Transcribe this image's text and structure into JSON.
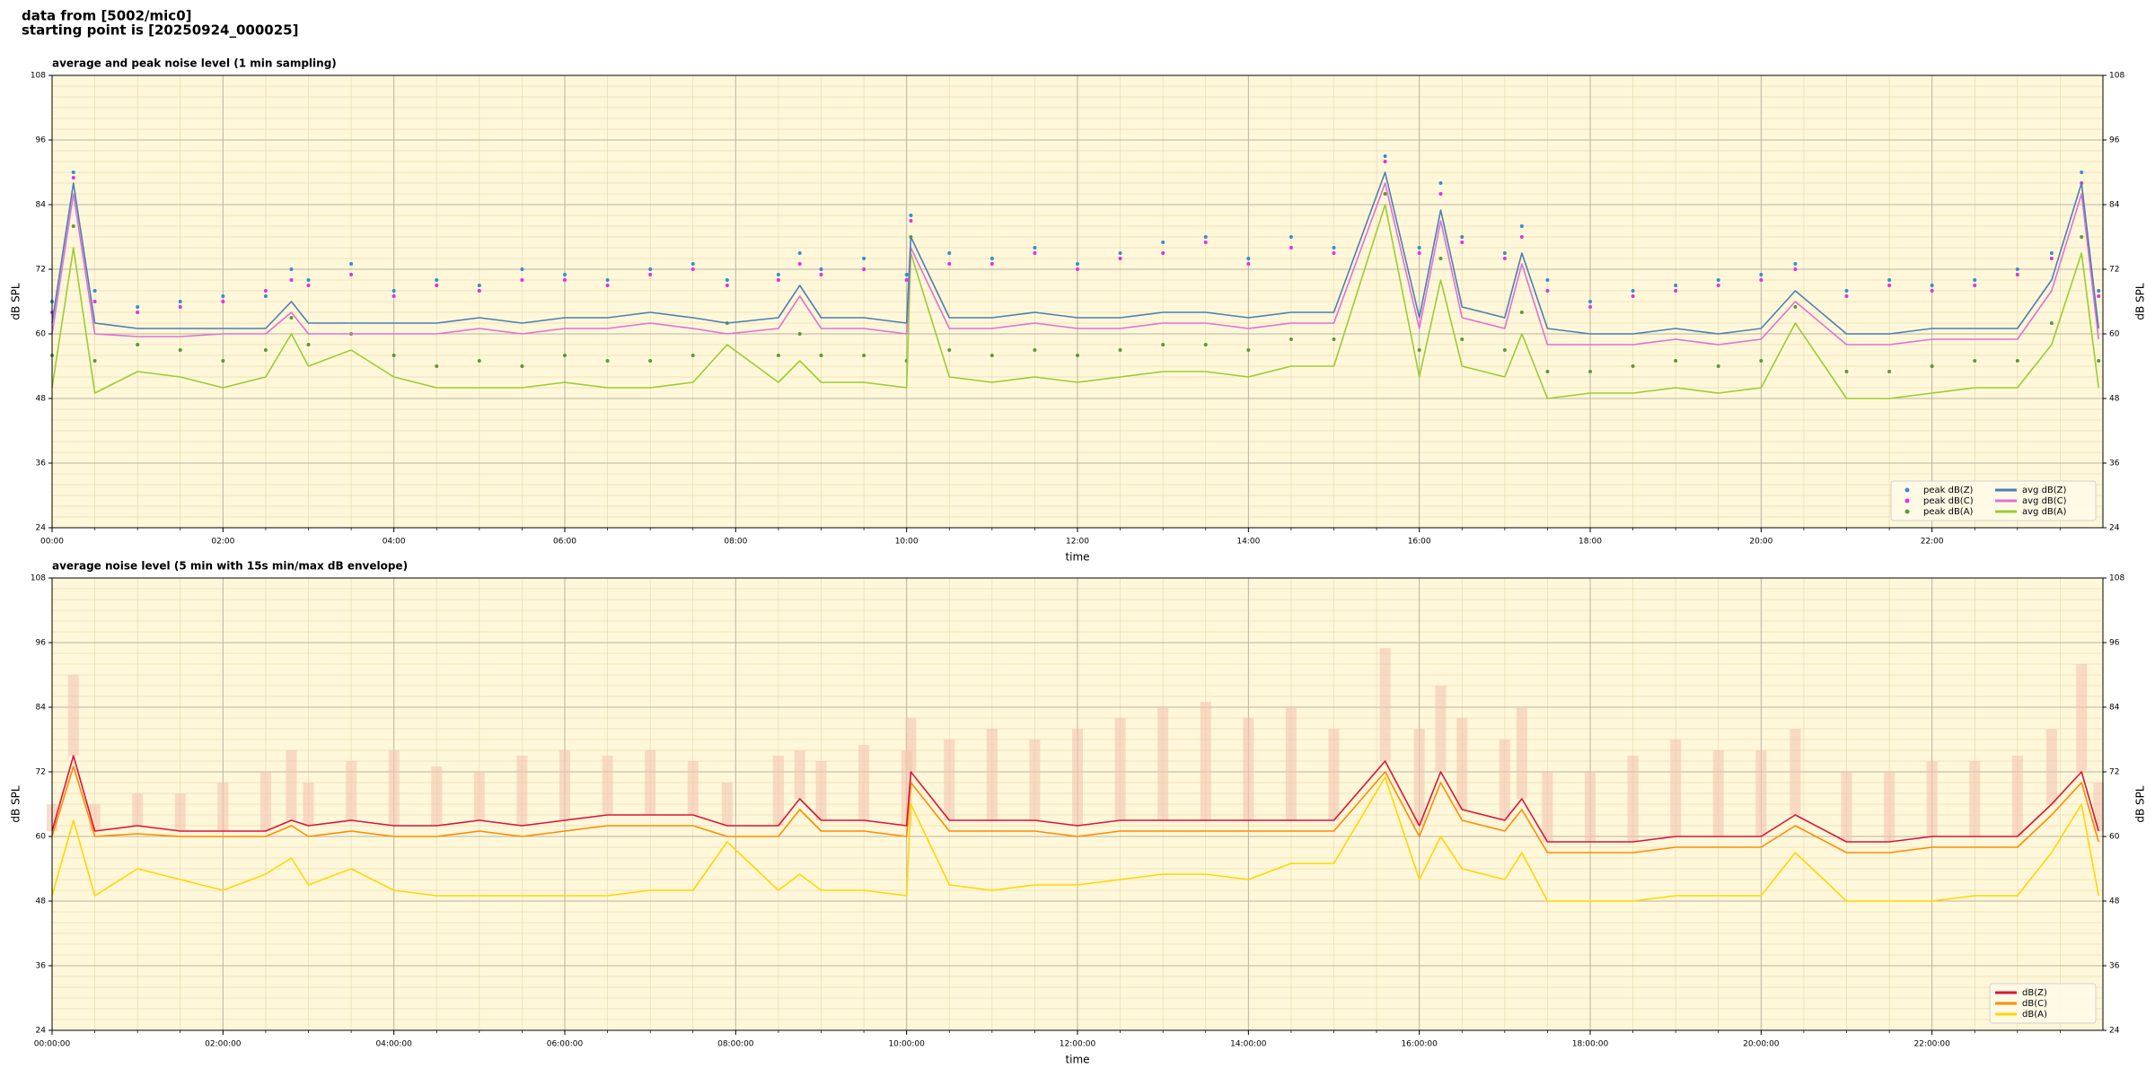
{
  "header": {
    "lines": [
      "data from [5002/mic0]",
      "starting point is [20250924_000025]"
    ]
  },
  "chart_data": [
    {
      "type": "line",
      "title": "average and peak noise level (1 min sampling)",
      "xlabel": "time",
      "ylabel": "dB SPL",
      "mirror_y": true,
      "grid": true,
      "legend": "lower right",
      "legend_columns": 2,
      "xlim": [
        0,
        24
      ],
      "xticks": [
        {
          "value": 0,
          "label": "00:00"
        },
        {
          "value": 2,
          "label": "02:00"
        },
        {
          "value": 4,
          "label": "04:00"
        },
        {
          "value": 6,
          "label": "06:00"
        },
        {
          "value": 8,
          "label": "08:00"
        },
        {
          "value": 10,
          "label": "10:00"
        },
        {
          "value": 12,
          "label": "12:00"
        },
        {
          "value": 14,
          "label": "14:00"
        },
        {
          "value": 16,
          "label": "16:00"
        },
        {
          "value": 18,
          "label": "18:00"
        },
        {
          "value": 20,
          "label": "20:00"
        },
        {
          "value": 22,
          "label": "22:00"
        }
      ],
      "ylim": [
        24,
        108
      ],
      "yticks": [
        24,
        36,
        48,
        60,
        72,
        84,
        96,
        108
      ],
      "x": [
        0,
        0.25,
        0.5,
        1,
        1.5,
        2,
        2.5,
        2.8,
        3,
        3.5,
        4,
        4.5,
        5,
        5.5,
        6,
        6.5,
        7,
        7.5,
        7.9,
        8.5,
        8.75,
        9,
        9.5,
        10,
        10.05,
        10.5,
        11,
        11.5,
        12,
        12.5,
        13,
        13.5,
        14,
        14.5,
        15,
        15.6,
        16,
        16.25,
        16.5,
        17,
        17.2,
        17.5,
        18,
        18.5,
        19,
        19.5,
        20,
        20.4,
        21,
        21.5,
        22,
        22.5,
        23,
        23.4,
        23.75,
        23.95
      ],
      "series": [
        {
          "name": "peak dB(Z)",
          "color": "#2f8fd8",
          "mode": "markers",
          "values": [
            66,
            90,
            68,
            65,
            66,
            67,
            67,
            72,
            70,
            73,
            68,
            70,
            69,
            72,
            71,
            70,
            72,
            73,
            70,
            71,
            75,
            72,
            74,
            71,
            82,
            75,
            74,
            76,
            73,
            75,
            77,
            78,
            74,
            78,
            76,
            93,
            76,
            88,
            78,
            75,
            80,
            70,
            66,
            68,
            69,
            70,
            71,
            73,
            68,
            70,
            69,
            70,
            72,
            75,
            90,
            68
          ]
        },
        {
          "name": "peak dB(C)",
          "color": "#e030e8",
          "mode": "markers",
          "values": [
            64,
            89,
            66,
            64,
            65,
            66,
            68,
            70,
            69,
            71,
            67,
            69,
            68,
            70,
            70,
            69,
            71,
            72,
            69,
            70,
            73,
            71,
            72,
            70,
            81,
            73,
            73,
            75,
            72,
            74,
            75,
            77,
            73,
            76,
            75,
            92,
            75,
            86,
            77,
            74,
            78,
            68,
            65,
            67,
            68,
            69,
            70,
            72,
            67,
            69,
            68,
            69,
            71,
            74,
            88,
            67
          ]
        },
        {
          "name": "peak dB(A)",
          "color": "#5a9a3a",
          "mode": "markers",
          "values": [
            56,
            80,
            55,
            58,
            57,
            55,
            57,
            63,
            58,
            60,
            56,
            54,
            55,
            54,
            56,
            55,
            55,
            56,
            62,
            56,
            60,
            56,
            56,
            55,
            78,
            57,
            56,
            57,
            56,
            57,
            58,
            58,
            57,
            59,
            59,
            86,
            57,
            74,
            59,
            57,
            64,
            53,
            53,
            54,
            55,
            54,
            55,
            65,
            53,
            53,
            54,
            55,
            55,
            62,
            78,
            55
          ]
        },
        {
          "name": "avg dB(Z)",
          "color": "#4a7fb5",
          "mode": "lines",
          "values": [
            62,
            88,
            62,
            61,
            61,
            61,
            61,
            66,
            62,
            62,
            62,
            62,
            63,
            62,
            63,
            63,
            64,
            63,
            62,
            63,
            69,
            63,
            63,
            62,
            78,
            63,
            63,
            64,
            63,
            63,
            64,
            64,
            63,
            64,
            64,
            90,
            63,
            83,
            65,
            63,
            75,
            61,
            60,
            60,
            61,
            60,
            61,
            68,
            60,
            60,
            61,
            61,
            61,
            70,
            88,
            61
          ]
        },
        {
          "name": "avg dB(C)",
          "color": "#e070d8",
          "mode": "lines",
          "values": [
            60,
            86,
            60,
            59.5,
            59.5,
            60,
            60,
            64,
            60,
            60,
            60,
            60,
            61,
            60,
            61,
            61,
            62,
            61,
            60,
            61,
            67,
            61,
            61,
            60,
            76,
            61,
            61,
            62,
            61,
            61,
            62,
            62,
            61,
            62,
            62,
            88,
            61,
            81,
            63,
            61,
            73,
            58,
            58,
            58,
            59,
            58,
            59,
            66,
            58,
            58,
            59,
            59,
            59,
            68,
            86,
            59
          ]
        },
        {
          "name": "avg dB(A)",
          "color": "#9acd32",
          "mode": "lines",
          "values": [
            50,
            76,
            49,
            53,
            52,
            50,
            52,
            60,
            54,
            57,
            52,
            50,
            50,
            50,
            51,
            50,
            50,
            51,
            58,
            51,
            55,
            51,
            51,
            50,
            75,
            52,
            51,
            52,
            51,
            52,
            53,
            53,
            52,
            54,
            54,
            84,
            52,
            70,
            54,
            52,
            60,
            48,
            49,
            49,
            50,
            49,
            50,
            62,
            48,
            48,
            49,
            50,
            50,
            58,
            75,
            50
          ]
        }
      ]
    },
    {
      "type": "line",
      "title": "average noise level (5 min with 15s min/max dB envelope)",
      "xlabel": "time",
      "ylabel": "dB SPL",
      "mirror_y": true,
      "grid": true,
      "legend": "lower right",
      "legend_columns": 1,
      "xlim": [
        0,
        24
      ],
      "xticks": [
        {
          "value": 0,
          "label": "00:00:00"
        },
        {
          "value": 2,
          "label": "02:00:00"
        },
        {
          "value": 4,
          "label": "04:00:00"
        },
        {
          "value": 6,
          "label": "06:00:00"
        },
        {
          "value": 8,
          "label": "08:00:00"
        },
        {
          "value": 10,
          "label": "10:00:00"
        },
        {
          "value": 12,
          "label": "12:00:00"
        },
        {
          "value": 14,
          "label": "14:00:00"
        },
        {
          "value": 16,
          "label": "16:00:00"
        },
        {
          "value": 18,
          "label": "18:00:00"
        },
        {
          "value": 20,
          "label": "20:00:00"
        },
        {
          "value": 22,
          "label": "22:00:00"
        }
      ],
      "ylim": [
        24,
        108
      ],
      "yticks": [
        24,
        36,
        48,
        60,
        72,
        84,
        96,
        108
      ],
      "x": [
        0,
        0.25,
        0.5,
        1,
        1.5,
        2,
        2.5,
        2.8,
        3,
        3.5,
        4,
        4.5,
        5,
        5.5,
        6,
        6.5,
        7,
        7.5,
        7.9,
        8.5,
        8.75,
        9,
        9.5,
        10,
        10.05,
        10.5,
        11,
        11.5,
        12,
        12.5,
        13,
        13.5,
        14,
        14.5,
        15,
        15.6,
        16,
        16.25,
        16.5,
        17,
        17.2,
        17.5,
        18,
        18.5,
        19,
        19.5,
        20,
        20.4,
        21,
        21.5,
        22,
        22.5,
        23,
        23.4,
        23.75,
        23.95
      ],
      "envelope": {
        "color": "#f4c4b0",
        "values": [
          66,
          90,
          66,
          68,
          68,
          70,
          72,
          76,
          70,
          74,
          76,
          73,
          72,
          75,
          76,
          75,
          76,
          74,
          70,
          75,
          76,
          74,
          77,
          76,
          82,
          78,
          80,
          78,
          80,
          82,
          84,
          85,
          82,
          84,
          80,
          95,
          80,
          88,
          82,
          78,
          84,
          72,
          72,
          75,
          78,
          76,
          76,
          80,
          72,
          72,
          74,
          74,
          75,
          80,
          92,
          70
        ]
      },
      "series": [
        {
          "name": "dB(Z)",
          "color": "#dc143c",
          "mode": "lines",
          "values": [
            61,
            75,
            61,
            62,
            61,
            61,
            61,
            63,
            62,
            63,
            62,
            62,
            63,
            62,
            63,
            64,
            64,
            64,
            62,
            62,
            67,
            63,
            63,
            62,
            72,
            63,
            63,
            63,
            62,
            63,
            63,
            63,
            63,
            63,
            63,
            74,
            62,
            72,
            65,
            63,
            67,
            59,
            59,
            59,
            60,
            60,
            60,
            64,
            59,
            59,
            60,
            60,
            60,
            66,
            72,
            61
          ]
        },
        {
          "name": "dB(C)",
          "color": "#ff8c00",
          "mode": "lines",
          "values": [
            60,
            73,
            60,
            60.5,
            60,
            60,
            60,
            62,
            60,
            61,
            60,
            60,
            61,
            60,
            61,
            62,
            62,
            62,
            60,
            60,
            65,
            61,
            61,
            60,
            70,
            61,
            61,
            61,
            60,
            61,
            61,
            61,
            61,
            61,
            61,
            72,
            60,
            70,
            63,
            61,
            65,
            57,
            57,
            57,
            58,
            58,
            58,
            62,
            57,
            57,
            58,
            58,
            58,
            64,
            70,
            59
          ]
        },
        {
          "name": "dB(A)",
          "color": "#ffd700",
          "mode": "lines",
          "values": [
            49,
            63,
            49,
            54,
            52,
            50,
            53,
            56,
            51,
            54,
            50,
            49,
            49,
            49,
            49,
            49,
            50,
            50,
            59,
            50,
            53,
            50,
            50,
            49,
            66,
            51,
            50,
            51,
            51,
            52,
            53,
            53,
            52,
            55,
            55,
            71,
            52,
            60,
            54,
            52,
            57,
            48,
            48,
            48,
            49,
            49,
            49,
            57,
            48,
            48,
            48,
            49,
            49,
            57,
            66,
            49
          ]
        }
      ]
    }
  ]
}
